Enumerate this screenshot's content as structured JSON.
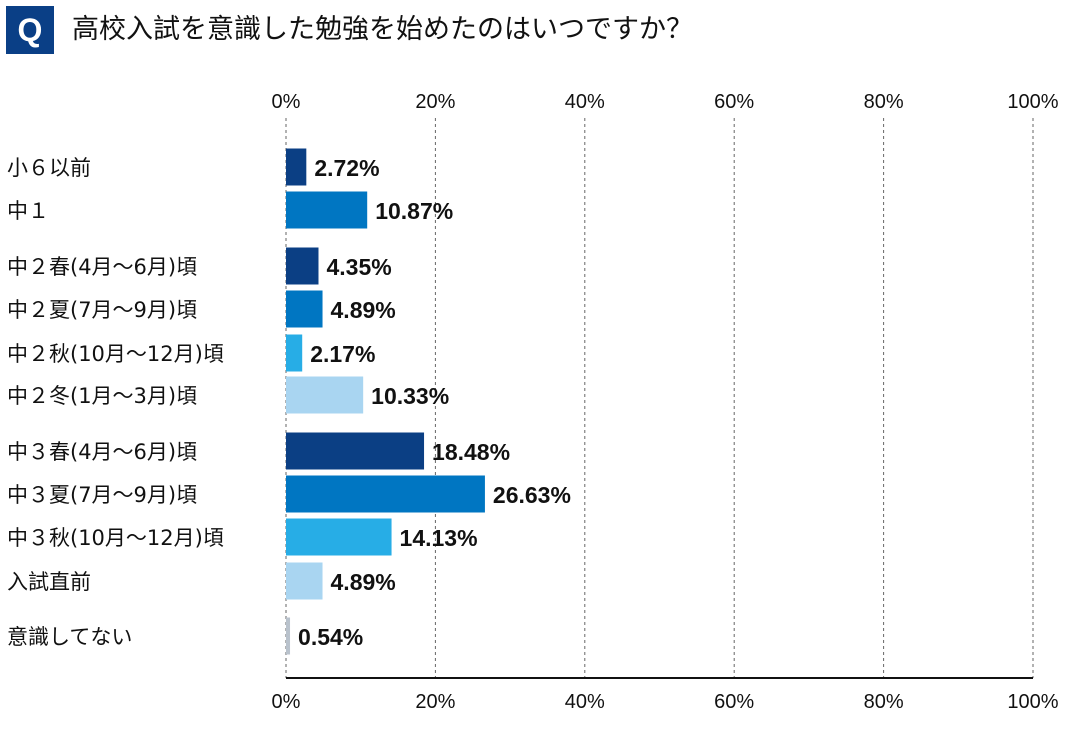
{
  "header": {
    "badge": "Q",
    "question": "高校入試を意識した勉強を始めたのはいつですか？"
  },
  "colors": {
    "badge": "#0a3f86",
    "dark_navy": "#0b3f84",
    "medium_blue": "#0076c2",
    "light_blue": "#27ade6",
    "pale_blue": "#a9d5f1",
    "gray": "#b9c2cc"
  },
  "chart_data": {
    "type": "bar",
    "orientation": "horizontal",
    "xlim": [
      0,
      100
    ],
    "xticks": [
      "0%",
      "20%",
      "40%",
      "60%",
      "80%",
      "100%"
    ],
    "grid": "vertical-dashed",
    "categories": [
      "小６以前",
      "中１",
      "中２春(4月～6月)頃",
      "中２夏(7月～9月)頃",
      "中２秋(10月～12月)頃",
      "中２冬(1月～3月)頃",
      "中３春(4月～6月)頃",
      "中３夏(7月～9月)頃",
      "中３秋(10月～12月)頃",
      "入試直前",
      "意識してない"
    ],
    "values": [
      2.72,
      10.87,
      4.35,
      4.89,
      2.17,
      10.33,
      18.48,
      26.63,
      14.13,
      4.89,
      0.54
    ],
    "value_labels": [
      "2.72%",
      "10.87%",
      "4.35%",
      "4.89%",
      "2.17%",
      "10.33%",
      "18.48%",
      "26.63%",
      "14.13%",
      "4.89%",
      "0.54%"
    ],
    "bar_colors": [
      "#0b3f84",
      "#0076c2",
      "#0b3f84",
      "#0076c2",
      "#27ade6",
      "#a9d5f1",
      "#0b3f84",
      "#0076c2",
      "#27ade6",
      "#a9d5f1",
      "#b9c2cc"
    ]
  }
}
